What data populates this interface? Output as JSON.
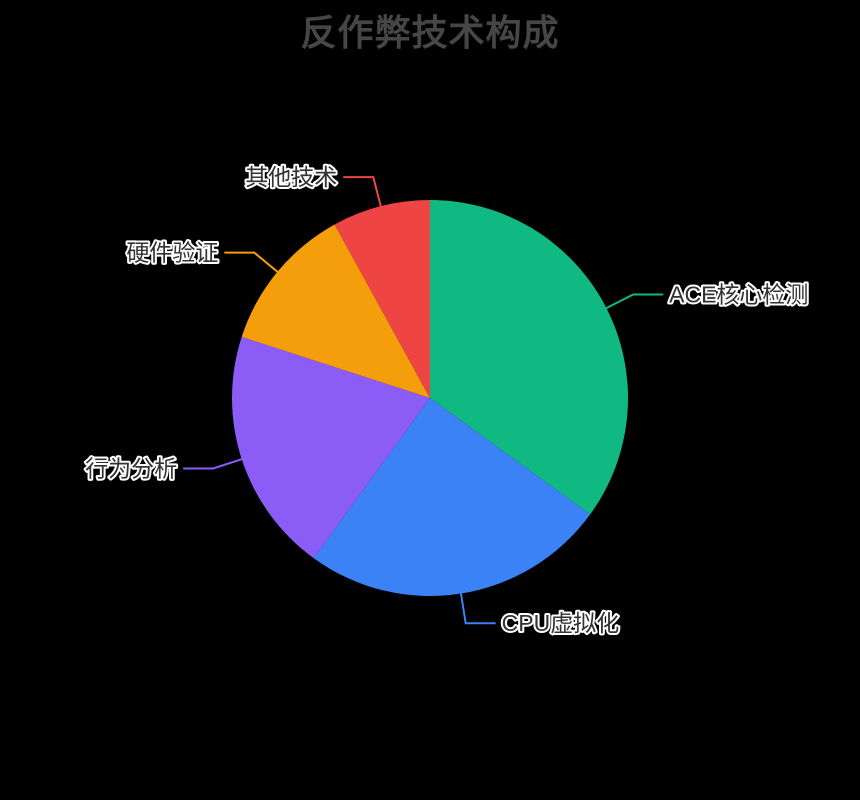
{
  "background": "#000000",
  "chart_data": {
    "type": "pie",
    "title": "反作弊技术构成",
    "title_color": "#464646",
    "label_color": "#333333",
    "label_outline_color": "#FFFFFF",
    "legend_position": "none",
    "start_angle": "top",
    "direction": "clockwise",
    "value_unit": "percent",
    "slices": [
      {
        "label": "ACE核心检测",
        "value": 35,
        "color": "#10B981"
      },
      {
        "label": "CPU虚拟化",
        "value": 25,
        "color": "#3B82F6"
      },
      {
        "label": "行为分析",
        "value": 20,
        "color": "#8B5CF6"
      },
      {
        "label": "硬件验证",
        "value": 12,
        "color": "#F59E0B"
      },
      {
        "label": "其他技术",
        "value": 8,
        "color": "#EF4444"
      }
    ]
  }
}
